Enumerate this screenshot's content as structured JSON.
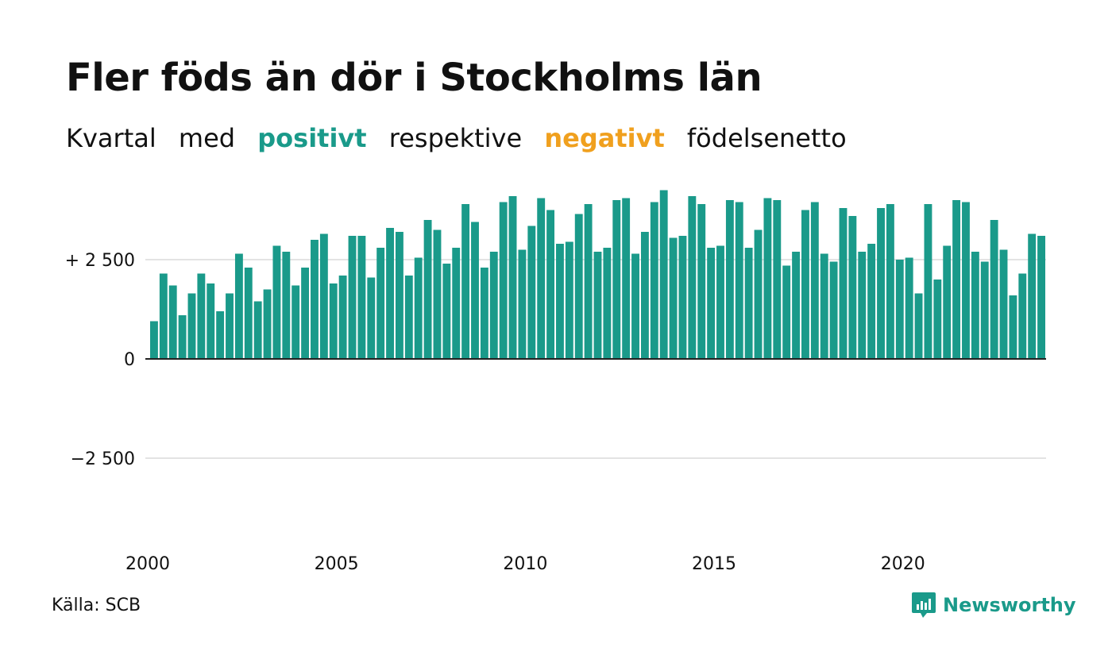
{
  "title": "Fler föds än dör i Stockholms län",
  "subtitle": {
    "part1": "Kvartal",
    "part2": "med",
    "positive": "positivt",
    "part3": "respektive",
    "negative": "negativt",
    "part4": "födelsenetto"
  },
  "colors": {
    "positive": "#1a9a8a",
    "negative": "#f0a01e",
    "grid": "#e3e3e3",
    "axis": "#222222",
    "text": "#111111"
  },
  "source": "Källa: SCB",
  "brand": {
    "name": "Newsworthy",
    "icon": "newsworthy-logo-icon"
  },
  "chart_data": {
    "type": "bar",
    "x_start": "2000 Q1",
    "x_ticks": [
      "2000",
      "2005",
      "2010",
      "2015",
      "2020"
    ],
    "y_ticks": [
      {
        "value": 2500,
        "label": "+ 2 500"
      },
      {
        "value": 0,
        "label": "0"
      },
      {
        "value": -2500,
        "label": "−2 500"
      }
    ],
    "ylim": [
      -4700,
      4500
    ],
    "grid": true,
    "values": [
      950,
      2150,
      1850,
      1100,
      1650,
      2150,
      1900,
      1200,
      1650,
      2650,
      2300,
      1450,
      1750,
      2850,
      2700,
      1850,
      2300,
      3000,
      3150,
      1900,
      2100,
      3100,
      3100,
      2050,
      2800,
      3300,
      3200,
      2100,
      2550,
      3500,
      3250,
      2400,
      2800,
      3900,
      3450,
      2300,
      2700,
      3950,
      4100,
      2750,
      3350,
      4050,
      3750,
      2900,
      2950,
      3650,
      3900,
      2700,
      2800,
      4000,
      4050,
      2650,
      3200,
      3950,
      4250,
      3050,
      3100,
      4100,
      3900,
      2800,
      2850,
      4000,
      3950,
      2800,
      3250,
      4050,
      4000,
      2350,
      2700,
      3750,
      3950,
      2650,
      2450,
      3800,
      3600,
      2700,
      2900,
      3800,
      3900,
      2500,
      2550,
      1650,
      3900,
      2000,
      2850,
      4000,
      3950,
      2700,
      2450,
      3500,
      2750,
      1600,
      2150,
      3150,
      3100
    ]
  }
}
